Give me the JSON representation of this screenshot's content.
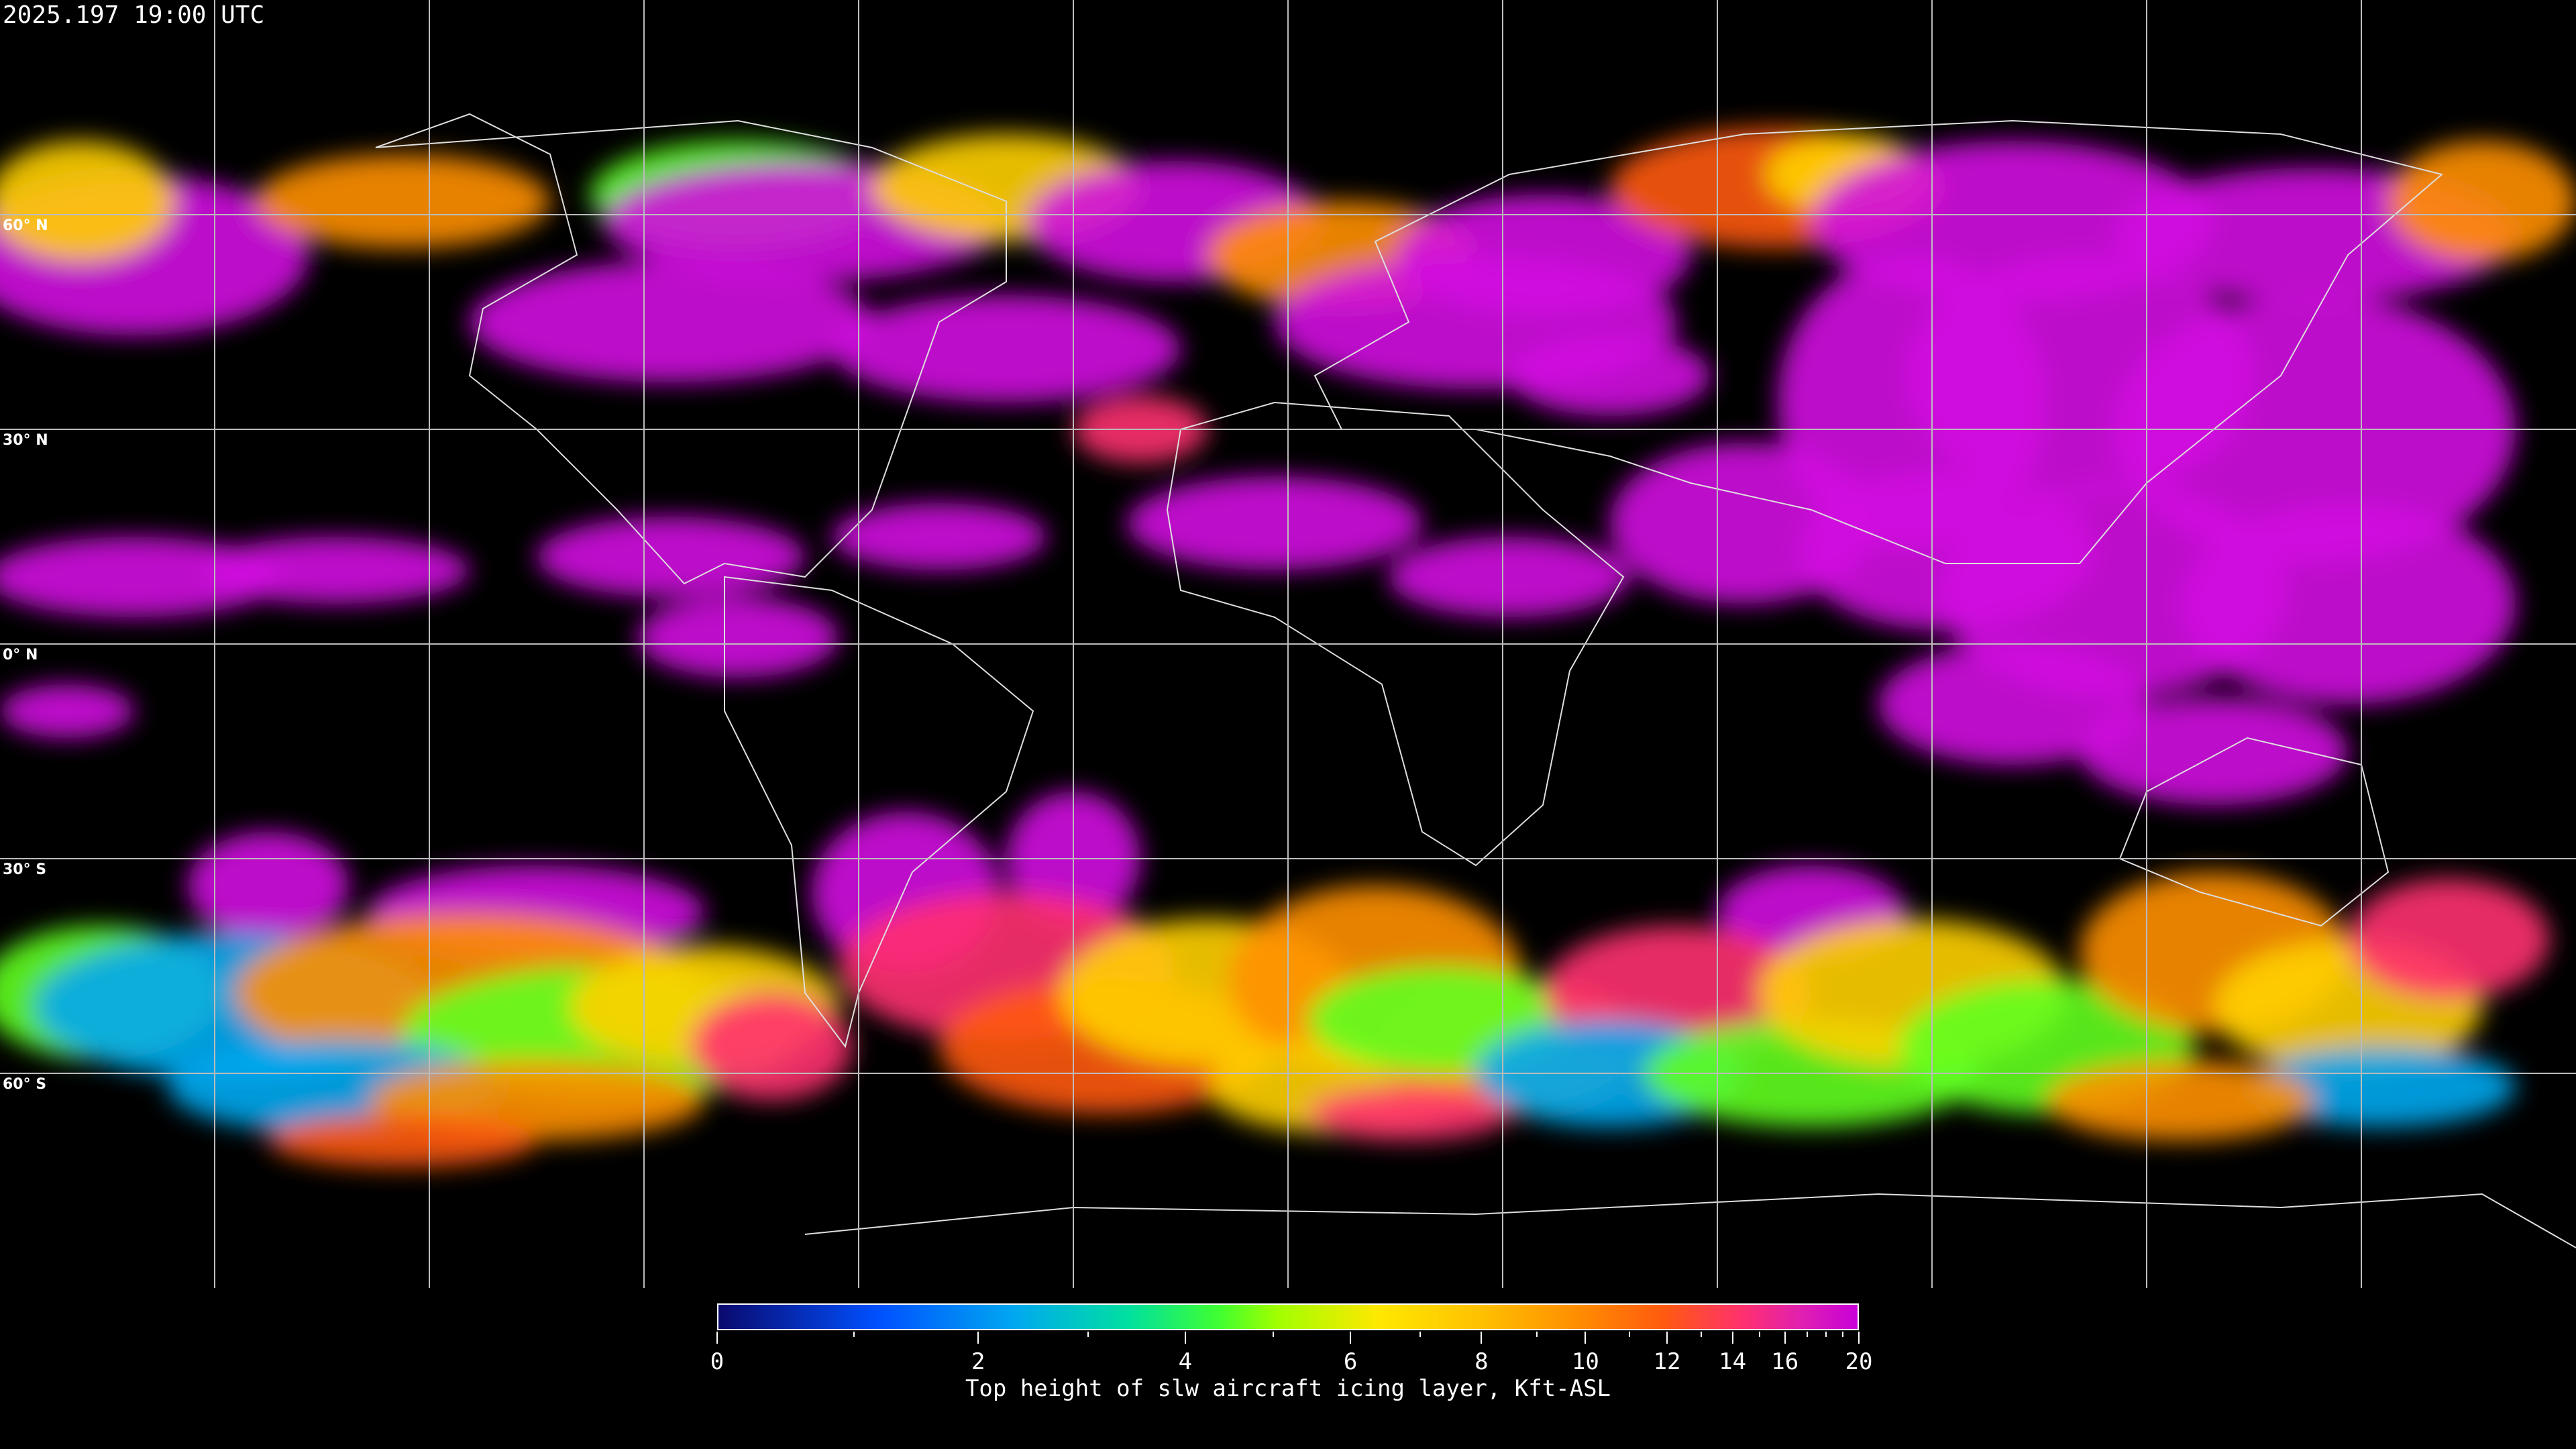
{
  "timestamp": "2025.197 19:00 UTC",
  "map": {
    "projection": "equirectangular",
    "background_color": "#000000",
    "grid_color": "#ffffff",
    "latitude_labels": [
      "60° N",
      "30° N",
      "0° N",
      "30° S",
      "60° S"
    ]
  },
  "colorbar": {
    "title": "Top height of slw aircraft icing layer, Kft-ASL",
    "range": [
      0,
      20
    ],
    "tick_labels": [
      "0",
      "2",
      "4",
      "6",
      "8",
      "10",
      "12",
      "14",
      "16",
      "20"
    ],
    "minor_ticks": [
      1,
      3,
      5,
      7,
      9,
      11,
      13,
      15,
      17,
      18,
      19
    ],
    "colors": [
      "#0a0a6e",
      "#0050ff",
      "#00a8f0",
      "#00e0a0",
      "#40ff30",
      "#a0ff00",
      "#ffe800",
      "#ffc000",
      "#ff9000",
      "#ff5a10",
      "#ff3070",
      "#c800d8"
    ]
  }
}
